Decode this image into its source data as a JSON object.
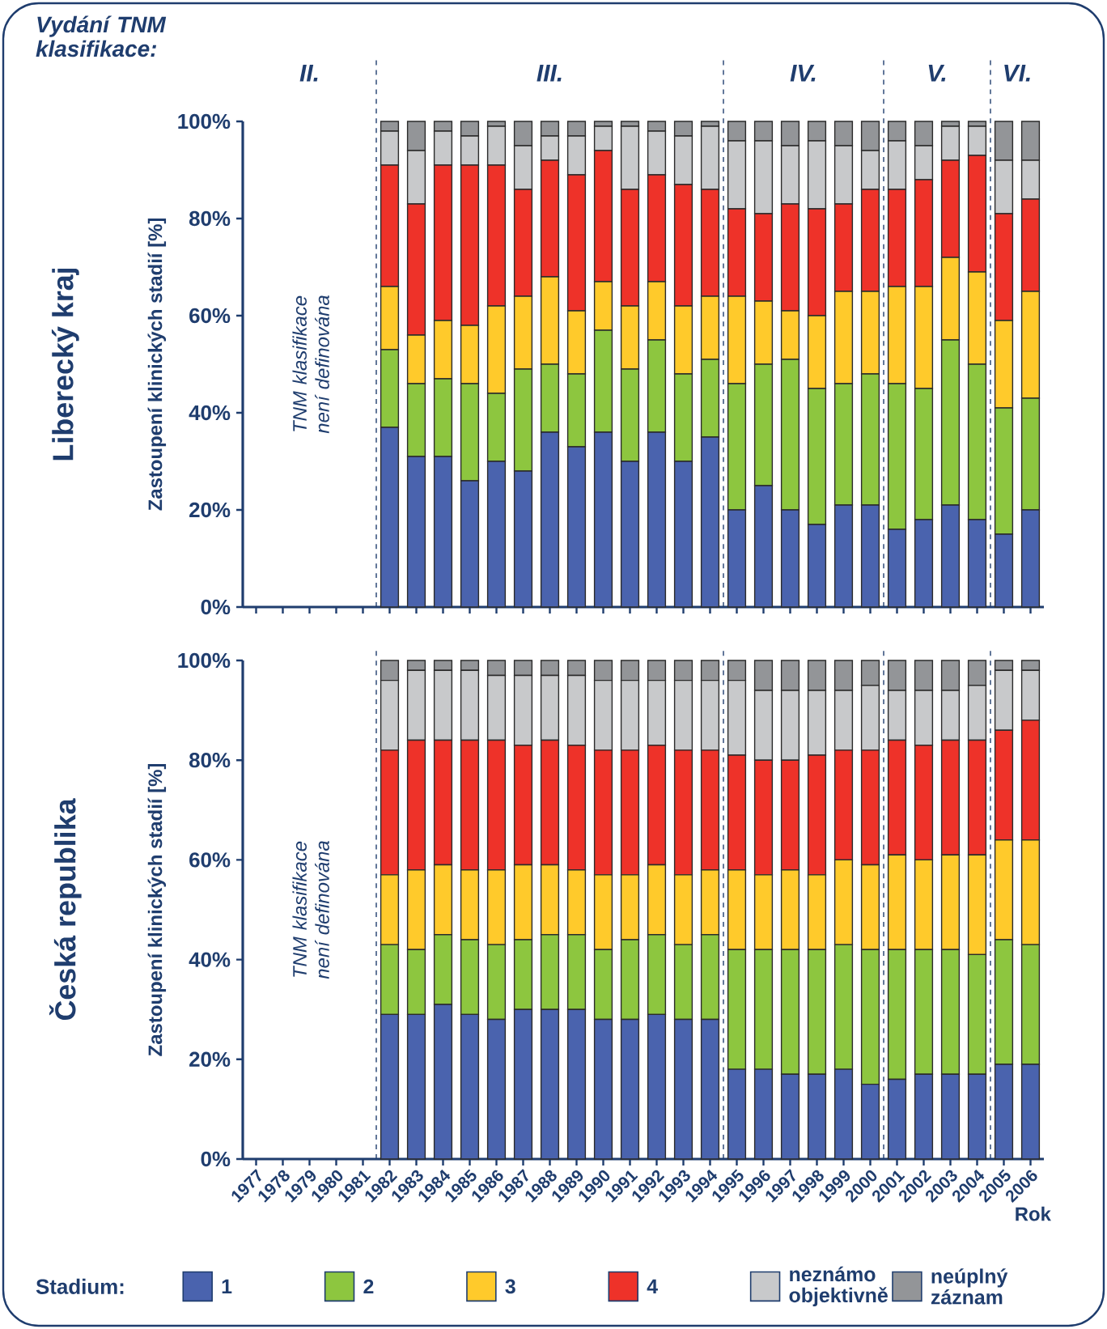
{
  "chart_data": [
    {
      "type": "bar",
      "stacked": true,
      "title": "Liberecký kraj",
      "subtitle": "Vydání TNM klasifikace:",
      "ylabel": "Zastoupení klinických stadií [%]",
      "tick_labels": "y",
      "annotations": [
        "TNM klasifikace není definována",
        "II.",
        "III.",
        "IV.",
        "V.",
        "VI."
      ],
      "x": [
        1982,
        1983,
        1984,
        1985,
        1986,
        1987,
        1988,
        1989,
        1990,
        1991,
        1992,
        1993,
        1994,
        1995,
        1996,
        1997,
        1998,
        1999,
        2000,
        2001,
        2002,
        2003,
        2004,
        2005,
        2006
      ],
      "xlim": [
        1976.5,
        2006.5
      ],
      "xticks": [
        1977,
        1978,
        1979,
        1980,
        1981,
        1982,
        1983,
        1984,
        1985,
        1986,
        1987,
        1988,
        1989,
        1990,
        1991,
        1992,
        1993,
        1994,
        1995,
        1996,
        1997,
        1998,
        1999,
        2000,
        2001,
        2002,
        2003,
        2004,
        2005,
        2006
      ],
      "ylim": [
        0,
        100
      ],
      "yticks": [
        {
          "value": 0,
          "label": "0%"
        },
        {
          "value": 20,
          "label": "20%"
        },
        {
          "value": 40,
          "label": "40%"
        },
        {
          "value": 60,
          "label": "60%"
        },
        {
          "value": 80,
          "label": "80%"
        },
        {
          "value": 100,
          "label": "100%"
        }
      ],
      "ref_lines": [
        {
          "axis": "x",
          "value": 1981.5,
          "line_style": "dashed"
        },
        {
          "axis": "x",
          "value": 1994.5,
          "line_style": "dashed"
        },
        {
          "axis": "x",
          "value": 2000.5,
          "line_style": "dashed"
        },
        {
          "axis": "x",
          "value": 2004.5,
          "line_style": "dashed"
        }
      ],
      "series": [
        {
          "color": "#4a63ae",
          "values": [
            37,
            31,
            31,
            26,
            30,
            28,
            36,
            33,
            36,
            30,
            36,
            30,
            35,
            20,
            25,
            20,
            17,
            21,
            21,
            16,
            18,
            21,
            18,
            15,
            20
          ]
        },
        {
          "color": "#8dc63f",
          "values": [
            16,
            15,
            16,
            20,
            14,
            21,
            14,
            15,
            21,
            19,
            19,
            18,
            16,
            26,
            25,
            31,
            28,
            25,
            27,
            30,
            27,
            34,
            32,
            26,
            23
          ]
        },
        {
          "color": "#ffca2b",
          "values": [
            13,
            10,
            12,
            12,
            18,
            15,
            18,
            13,
            10,
            13,
            12,
            14,
            13,
            18,
            13,
            10,
            15,
            19,
            17,
            20,
            21,
            17,
            19,
            18,
            22
          ]
        },
        {
          "color": "#ee3229",
          "values": [
            25,
            27,
            32,
            33,
            29,
            22,
            24,
            28,
            27,
            24,
            22,
            25,
            22,
            18,
            18,
            22,
            22,
            18,
            21,
            20,
            22,
            20,
            24,
            22,
            19
          ]
        },
        {
          "color": "#c8c9cb",
          "values": [
            7,
            11,
            7,
            6,
            8,
            9,
            5,
            8,
            5,
            13,
            9,
            10,
            13,
            14,
            15,
            12,
            14,
            12,
            8,
            10,
            7,
            7,
            6,
            11,
            8
          ]
        },
        {
          "color": "#939598",
          "values": [
            2,
            6,
            2,
            3,
            1,
            5,
            3,
            3,
            1,
            1,
            2,
            3,
            1,
            4,
            4,
            5,
            4,
            5,
            6,
            4,
            5,
            1,
            1,
            8,
            8
          ]
        }
      ]
    },
    {
      "type": "bar",
      "stacked": true,
      "title": "Česká republika",
      "ylabel": "Zastoupení klinických stadií [%]",
      "xlabel": "Rok",
      "legend": "bottom",
      "legend_title": "Stadium:",
      "annotations": [
        "TNM klasifikace není definována"
      ],
      "x": [
        1982,
        1983,
        1984,
        1985,
        1986,
        1987,
        1988,
        1989,
        1990,
        1991,
        1992,
        1993,
        1994,
        1995,
        1996,
        1997,
        1998,
        1999,
        2000,
        2001,
        2002,
        2003,
        2004,
        2005,
        2006
      ],
      "xlim": [
        1976.5,
        2006.5
      ],
      "xticks": [
        1977,
        1978,
        1979,
        1980,
        1981,
        1982,
        1983,
        1984,
        1985,
        1986,
        1987,
        1988,
        1989,
        1990,
        1991,
        1992,
        1993,
        1994,
        1995,
        1996,
        1997,
        1998,
        1999,
        2000,
        2001,
        2002,
        2003,
        2004,
        2005,
        2006
      ],
      "ylim": [
        0,
        100
      ],
      "yticks": [
        {
          "value": 0,
          "label": "0%"
        },
        {
          "value": 20,
          "label": "20%"
        },
        {
          "value": 40,
          "label": "40%"
        },
        {
          "value": 60,
          "label": "60%"
        },
        {
          "value": 80,
          "label": "80%"
        },
        {
          "value": 100,
          "label": "100%"
        }
      ],
      "ref_lines": [
        {
          "axis": "x",
          "value": 1981.5,
          "line_style": "dashed"
        },
        {
          "axis": "x",
          "value": 1994.5,
          "line_style": "dashed"
        },
        {
          "axis": "x",
          "value": 2000.5,
          "line_style": "dashed"
        },
        {
          "axis": "x",
          "value": 2004.5,
          "line_style": "dashed"
        }
      ],
      "series": [
        {
          "name": "1",
          "color": "#4a63ae",
          "values": [
            29,
            29,
            31,
            29,
            28,
            30,
            30,
            30,
            28,
            28,
            29,
            28,
            28,
            18,
            18,
            17,
            17,
            18,
            15,
            16,
            17,
            17,
            17,
            19,
            19
          ]
        },
        {
          "name": "2",
          "color": "#8dc63f",
          "values": [
            14,
            13,
            14,
            15,
            15,
            14,
            15,
            15,
            14,
            16,
            16,
            15,
            17,
            24,
            24,
            25,
            25,
            25,
            27,
            26,
            25,
            25,
            24,
            25,
            24
          ]
        },
        {
          "name": "3",
          "color": "#ffca2b",
          "values": [
            14,
            16,
            14,
            14,
            15,
            15,
            14,
            13,
            15,
            13,
            14,
            14,
            13,
            16,
            15,
            16,
            15,
            17,
            17,
            19,
            18,
            19,
            20,
            20,
            21
          ]
        },
        {
          "name": "4",
          "color": "#ee3229",
          "values": [
            25,
            26,
            25,
            26,
            26,
            24,
            25,
            25,
            25,
            25,
            24,
            25,
            24,
            23,
            23,
            22,
            24,
            22,
            23,
            23,
            23,
            23,
            23,
            22,
            24
          ]
        },
        {
          "name": "neznámo objektivně",
          "color": "#c8c9cb",
          "values": [
            14,
            14,
            14,
            14,
            13,
            14,
            13,
            14,
            14,
            14,
            13,
            14,
            14,
            15,
            14,
            14,
            13,
            12,
            13,
            10,
            11,
            10,
            11,
            12,
            10
          ]
        },
        {
          "name": "neúplný záznam",
          "color": "#939598",
          "values": [
            4,
            2,
            2,
            2,
            3,
            3,
            3,
            3,
            4,
            4,
            4,
            4,
            4,
            4,
            6,
            6,
            6,
            6,
            5,
            6,
            6,
            6,
            5,
            2,
            2
          ]
        }
      ]
    }
  ]
}
